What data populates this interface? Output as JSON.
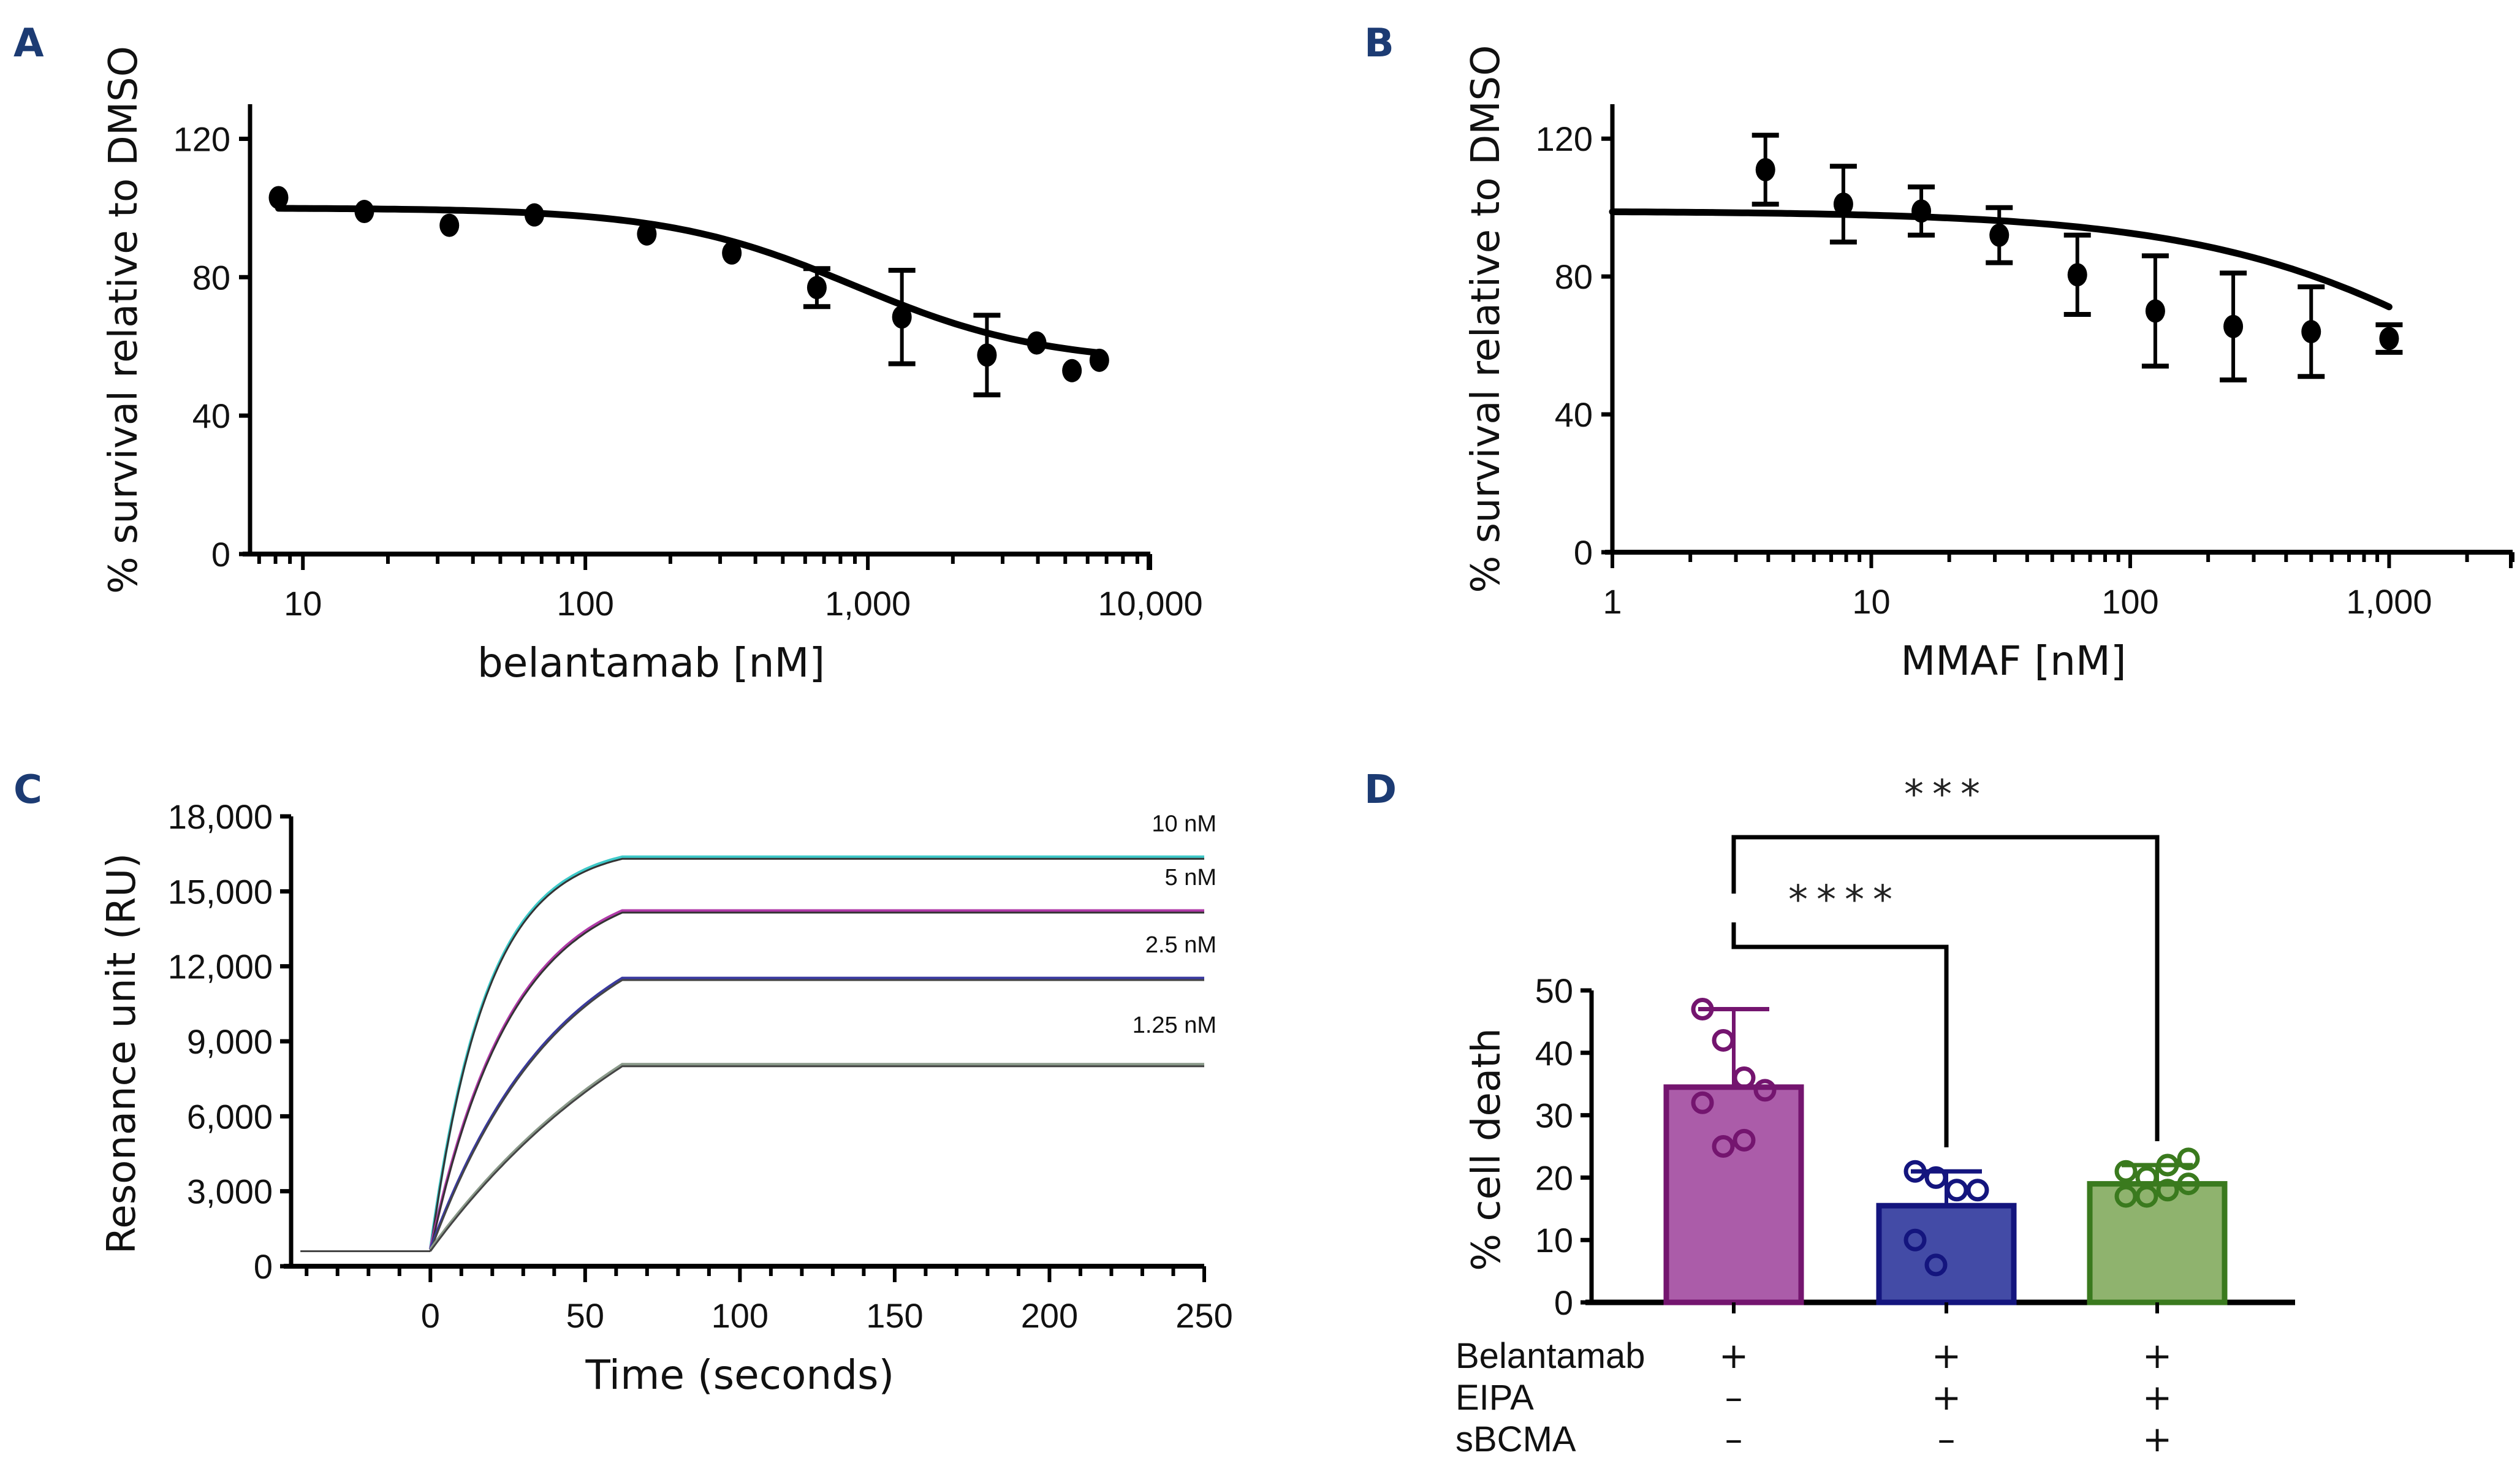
{
  "figure": {
    "panels": [
      "A",
      "B",
      "C",
      "D"
    ],
    "letter_color": "#1c3b73"
  },
  "chart_data": [
    {
      "id": "A",
      "type": "scatter",
      "title": "",
      "xlabel": "belantamab [nM]",
      "ylabel": "% survival relative to DMSO",
      "xscale": "log",
      "xlim": [
        6.5,
        10000
      ],
      "ylim": [
        0,
        130
      ],
      "xticks": [
        10,
        100,
        1000,
        10000
      ],
      "xtick_labels": [
        "10",
        "100",
        "1,000",
        "10,000"
      ],
      "yticks": [
        0,
        40,
        80,
        120
      ],
      "ytick_labels": [
        "0",
        "40",
        "80",
        "120"
      ],
      "grid": false,
      "points": [
        {
          "x": 8.2,
          "y": 103,
          "err": 0
        },
        {
          "x": 16.5,
          "y": 99,
          "err": 0
        },
        {
          "x": 33,
          "y": 95,
          "err": 0
        },
        {
          "x": 66,
          "y": 98,
          "err": 0
        },
        {
          "x": 165,
          "y": 92.5,
          "err": 0
        },
        {
          "x": 330,
          "y": 87,
          "err": 0
        },
        {
          "x": 660,
          "y": 77,
          "err": 5.5
        },
        {
          "x": 1320,
          "y": 68.5,
          "err": 13.5
        },
        {
          "x": 2640,
          "y": 57.5,
          "err": 11.5
        },
        {
          "x": 3960,
          "y": 61,
          "err": 0
        },
        {
          "x": 5280,
          "y": 53,
          "err": 0
        },
        {
          "x": 6600,
          "y": 56,
          "err": 0
        }
      ],
      "fit": {
        "model": "4PL",
        "top": 100,
        "bottom": 55,
        "ec50": 900,
        "hill": 1.3,
        "x_range": [
          8.2,
          6600
        ]
      },
      "color": "#000000"
    },
    {
      "id": "B",
      "type": "scatter",
      "title": "",
      "xlabel": "MMAF [nM]",
      "ylabel": "% survival relative to DMSO",
      "xscale": "log",
      "xlim": [
        1,
        3000
      ],
      "ylim": [
        0,
        130
      ],
      "xticks": [
        1,
        10,
        100,
        1000
      ],
      "xtick_labels": [
        "1",
        "10",
        "100",
        "1,000"
      ],
      "yticks": [
        0,
        40,
        80,
        120
      ],
      "ytick_labels": [
        "0",
        "40",
        "80",
        "120"
      ],
      "grid": false,
      "points": [
        {
          "x": 3.9,
          "y": 111,
          "err": 10
        },
        {
          "x": 7.8,
          "y": 101,
          "err": 11
        },
        {
          "x": 15.6,
          "y": 99,
          "err": 7
        },
        {
          "x": 31.2,
          "y": 92,
          "err": 8
        },
        {
          "x": 62.5,
          "y": 80.5,
          "err": 11.5
        },
        {
          "x": 125,
          "y": 70,
          "err": 16
        },
        {
          "x": 250,
          "y": 65.5,
          "err": 15.5
        },
        {
          "x": 500,
          "y": 64,
          "err": 13
        },
        {
          "x": 1000,
          "y": 62,
          "err": 4
        }
      ],
      "fit": {
        "model": "4PL",
        "top": 99,
        "bottom": 0,
        "ec50": 3500,
        "hill": 0.75,
        "x_range": [
          1,
          1000
        ]
      },
      "color": "#000000"
    },
    {
      "id": "C",
      "type": "line",
      "title": "",
      "xlabel": "Time (seconds)",
      "ylabel": "Resonance unit (RU)",
      "xlim": [
        -45,
        250
      ],
      "ylim": [
        0,
        18000
      ],
      "xticks": [
        0,
        50,
        100,
        150,
        200,
        250
      ],
      "xtick_labels": [
        "0",
        "50",
        "100",
        "150",
        "200",
        "250"
      ],
      "yticks": [
        0,
        3000,
        6000,
        9000,
        12000,
        15000,
        18000
      ],
      "ytick_labels": [
        "0",
        "3,000",
        "6,000",
        "9,000",
        "12,000",
        "15,000",
        "18,000"
      ],
      "grid": false,
      "baseline": 600,
      "injection_end": 62,
      "series": [
        {
          "name": "10 nM",
          "plateau": 16300,
          "rate": 0.055,
          "color": "#3ec9c9",
          "fit_color": "#333333"
        },
        {
          "name": "5 nM",
          "plateau": 14150,
          "rate": 0.038,
          "color": "#b03aa8",
          "fit_color": "#333333"
        },
        {
          "name": "2.5 nM",
          "plateau": 11450,
          "rate": 0.024,
          "color": "#3a3aa0",
          "fit_color": "#444444"
        },
        {
          "name": "1.25 nM",
          "plateau": 8000,
          "rate": 0.012,
          "color": "#8a9a8a",
          "fit_color": "#444444"
        }
      ]
    },
    {
      "id": "D",
      "type": "bar",
      "title": "",
      "xlabel": "",
      "ylabel": "% cell death",
      "ylim": [
        0,
        50
      ],
      "yticks": [
        0,
        10,
        20,
        30,
        40,
        50
      ],
      "ytick_labels": [
        "0",
        "10",
        "20",
        "30",
        "40",
        "50"
      ],
      "grid": false,
      "categories": [
        "Belantamab",
        "Belantamab + EIPA",
        "Belantamab + EIPA + sBCMA"
      ],
      "values": [
        34.5,
        15.5,
        19
      ],
      "errors": [
        12.5,
        5.5,
        3
      ],
      "bar_fill": [
        "#ab5ca9",
        "#434ba6",
        "#8fb36e"
      ],
      "bar_stroke": [
        "#74156f",
        "#14157e",
        "#3a7a1e"
      ],
      "points": [
        [
          47,
          42,
          36,
          34,
          32,
          25,
          26
        ],
        [
          21,
          20,
          18,
          18,
          10,
          6
        ],
        [
          21,
          20,
          22,
          23,
          17,
          17,
          18,
          19
        ]
      ],
      "conditions": {
        "rows": [
          "Belantamab",
          "EIPA",
          "sBCMA"
        ],
        "values": [
          [
            "+",
            "+",
            "+"
          ],
          [
            "–",
            "+",
            "+"
          ],
          [
            "–",
            "–",
            "+"
          ]
        ]
      },
      "significance": [
        {
          "from": 0,
          "to": 1,
          "label": "****"
        },
        {
          "from": 0,
          "to": 2,
          "label": "***"
        }
      ]
    }
  ]
}
